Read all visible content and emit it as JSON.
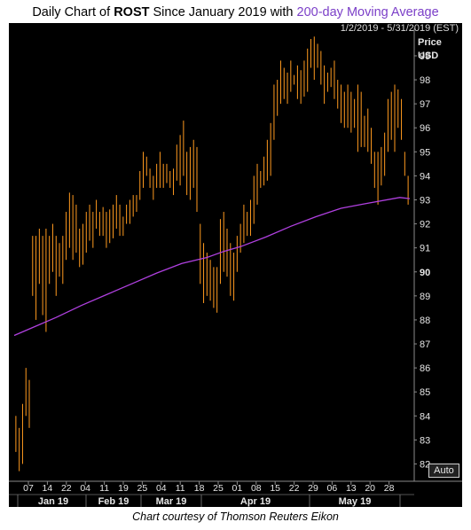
{
  "title": {
    "prefix": "Daily Chart of",
    "ticker": "ROST",
    "middle": "Since January 2019 with",
    "ma_label": "200-day Moving Average"
  },
  "date_range": "1/2/2019 - 5/31/2019 (EST)",
  "auto_label": "Auto",
  "courtesy": "Chart courtesy of Thomson Reuters Eikon",
  "colors": {
    "background": "#000000",
    "price_bars": "#ff9a1f",
    "moving_average": "#b040e0",
    "axis_text": "#e6e6e6"
  },
  "chart_data": {
    "type": "ohlc",
    "ylabel": "Price",
    "yunit": "USD",
    "ylim": [
      81.5,
      99.7
    ],
    "yticks": [
      82,
      83,
      84,
      85,
      86,
      87,
      88,
      89,
      90,
      91,
      92,
      93,
      94,
      95,
      96,
      97,
      98,
      99
    ],
    "highlight_tick": 90,
    "xticks": [
      "07",
      "14",
      "22",
      "04",
      "11",
      "19",
      "25",
      "04",
      "11",
      "18",
      "25",
      "01",
      "08",
      "15",
      "22",
      "29",
      "06",
      "13",
      "20",
      "28"
    ],
    "months": [
      "Jan 19",
      "Feb 19",
      "Mar 19",
      "Apr 19",
      "May 19"
    ],
    "grid": false,
    "series": [
      {
        "style": "ohlc",
        "values": [
          [
            82.5,
            84.0
          ],
          [
            81.7,
            83.5
          ],
          [
            82.0,
            84.5
          ],
          [
            84.0,
            86.0
          ],
          [
            83.5,
            85.5
          ],
          [
            89.0,
            91.5
          ],
          [
            88.0,
            91.5
          ],
          [
            89.5,
            91.8
          ],
          [
            88.2,
            91.5
          ],
          [
            87.5,
            91.8
          ],
          [
            89.5,
            91.5
          ],
          [
            90.0,
            92.0
          ],
          [
            89.0,
            91.5
          ],
          [
            89.8,
            91.2
          ],
          [
            89.5,
            91.5
          ],
          [
            90.5,
            92.5
          ],
          [
            91.0,
            93.3
          ],
          [
            90.5,
            93.2
          ],
          [
            90.8,
            92.8
          ],
          [
            90.2,
            91.8
          ],
          [
            90.3,
            92.0
          ],
          [
            90.8,
            92.5
          ],
          [
            91.3,
            92.8
          ],
          [
            91.0,
            92.5
          ],
          [
            91.8,
            93.0
          ],
          [
            91.5,
            92.5
          ],
          [
            91.5,
            92.7
          ],
          [
            91.0,
            92.5
          ],
          [
            91.2,
            92.6
          ],
          [
            91.4,
            92.8
          ],
          [
            91.8,
            93.2
          ],
          [
            91.5,
            92.8
          ],
          [
            91.5,
            92.3
          ],
          [
            92.0,
            92.8
          ],
          [
            92.0,
            93.0
          ],
          [
            92.3,
            93.2
          ],
          [
            92.5,
            93.2
          ],
          [
            93.0,
            94.2
          ],
          [
            93.5,
            95.0
          ],
          [
            94.0,
            94.8
          ],
          [
            93.5,
            94.3
          ],
          [
            93.0,
            94.0
          ],
          [
            93.5,
            94.5
          ],
          [
            93.5,
            95.0
          ],
          [
            93.5,
            94.5
          ],
          [
            93.7,
            94.5
          ],
          [
            93.5,
            94.2
          ],
          [
            93.2,
            94.3
          ],
          [
            93.8,
            95.3
          ],
          [
            93.6,
            95.7
          ],
          [
            94.0,
            96.3
          ],
          [
            93.2,
            95.0
          ],
          [
            93.0,
            95.2
          ],
          [
            93.5,
            95.5
          ],
          [
            92.5,
            95.2
          ],
          [
            89.5,
            92.0
          ],
          [
            88.7,
            91.2
          ],
          [
            89.0,
            90.8
          ],
          [
            88.8,
            90.5
          ],
          [
            88.5,
            90.2
          ],
          [
            88.3,
            90.2
          ],
          [
            89.5,
            92.2
          ],
          [
            90.0,
            92.5
          ],
          [
            89.8,
            91.8
          ],
          [
            89.0,
            91.2
          ],
          [
            88.8,
            90.8
          ],
          [
            90.0,
            91.5
          ],
          [
            90.8,
            92.0
          ],
          [
            91.2,
            92.8
          ],
          [
            91.5,
            92.5
          ],
          [
            91.5,
            93.0
          ],
          [
            92.0,
            94.0
          ],
          [
            92.8,
            94.5
          ],
          [
            93.5,
            94.2
          ],
          [
            93.6,
            94.8
          ],
          [
            93.8,
            95.5
          ],
          [
            94.0,
            96.2
          ],
          [
            95.5,
            97.8
          ],
          [
            96.5,
            98.0
          ],
          [
            97.0,
            98.8
          ],
          [
            97.2,
            98.5
          ],
          [
            97.0,
            98.3
          ],
          [
            97.5,
            98.8
          ],
          [
            97.8,
            98.2
          ],
          [
            97.2,
            98.6
          ],
          [
            97.0,
            98.4
          ],
          [
            97.3,
            98.8
          ],
          [
            97.5,
            99.3
          ],
          [
            98.5,
            99.7
          ],
          [
            98.0,
            99.8
          ],
          [
            98.5,
            99.5
          ],
          [
            97.8,
            99.2
          ],
          [
            97.0,
            98.6
          ],
          [
            97.5,
            98.3
          ],
          [
            97.7,
            98.5
          ],
          [
            97.2,
            98.8
          ],
          [
            96.8,
            98.0
          ],
          [
            96.2,
            97.8
          ],
          [
            96.0,
            97.5
          ],
          [
            96.0,
            97.8
          ],
          [
            95.8,
            97.5
          ],
          [
            96.0,
            97.2
          ],
          [
            95.0,
            97.8
          ],
          [
            95.2,
            97.5
          ],
          [
            95.2,
            96.5
          ],
          [
            95.0,
            96.8
          ],
          [
            94.5,
            96.0
          ],
          [
            93.5,
            95.0
          ],
          [
            92.8,
            95.0
          ],
          [
            93.6,
            95.2
          ],
          [
            94.0,
            95.8
          ],
          [
            95.0,
            97.2
          ],
          [
            95.5,
            97.5
          ],
          [
            95.0,
            97.8
          ],
          [
            96.0,
            97.6
          ],
          [
            95.5,
            97.2
          ],
          [
            94.0,
            95.0
          ],
          [
            92.8,
            94.0
          ]
        ]
      },
      {
        "style": "line",
        "name": "200-day Moving Average",
        "values": [
          [
            0,
            87.35
          ],
          [
            10,
            87.65
          ],
          [
            25,
            88.1
          ],
          [
            40,
            88.6
          ],
          [
            55,
            89.05
          ],
          [
            70,
            89.5
          ],
          [
            85,
            89.95
          ],
          [
            100,
            90.35
          ],
          [
            115,
            90.6
          ],
          [
            125,
            90.85
          ],
          [
            135,
            91.05
          ],
          [
            150,
            91.45
          ],
          [
            165,
            91.9
          ],
          [
            180,
            92.3
          ],
          [
            195,
            92.65
          ],
          [
            210,
            92.85
          ],
          [
            230,
            93.1
          ],
          [
            236,
            93.05
          ]
        ]
      }
    ]
  }
}
